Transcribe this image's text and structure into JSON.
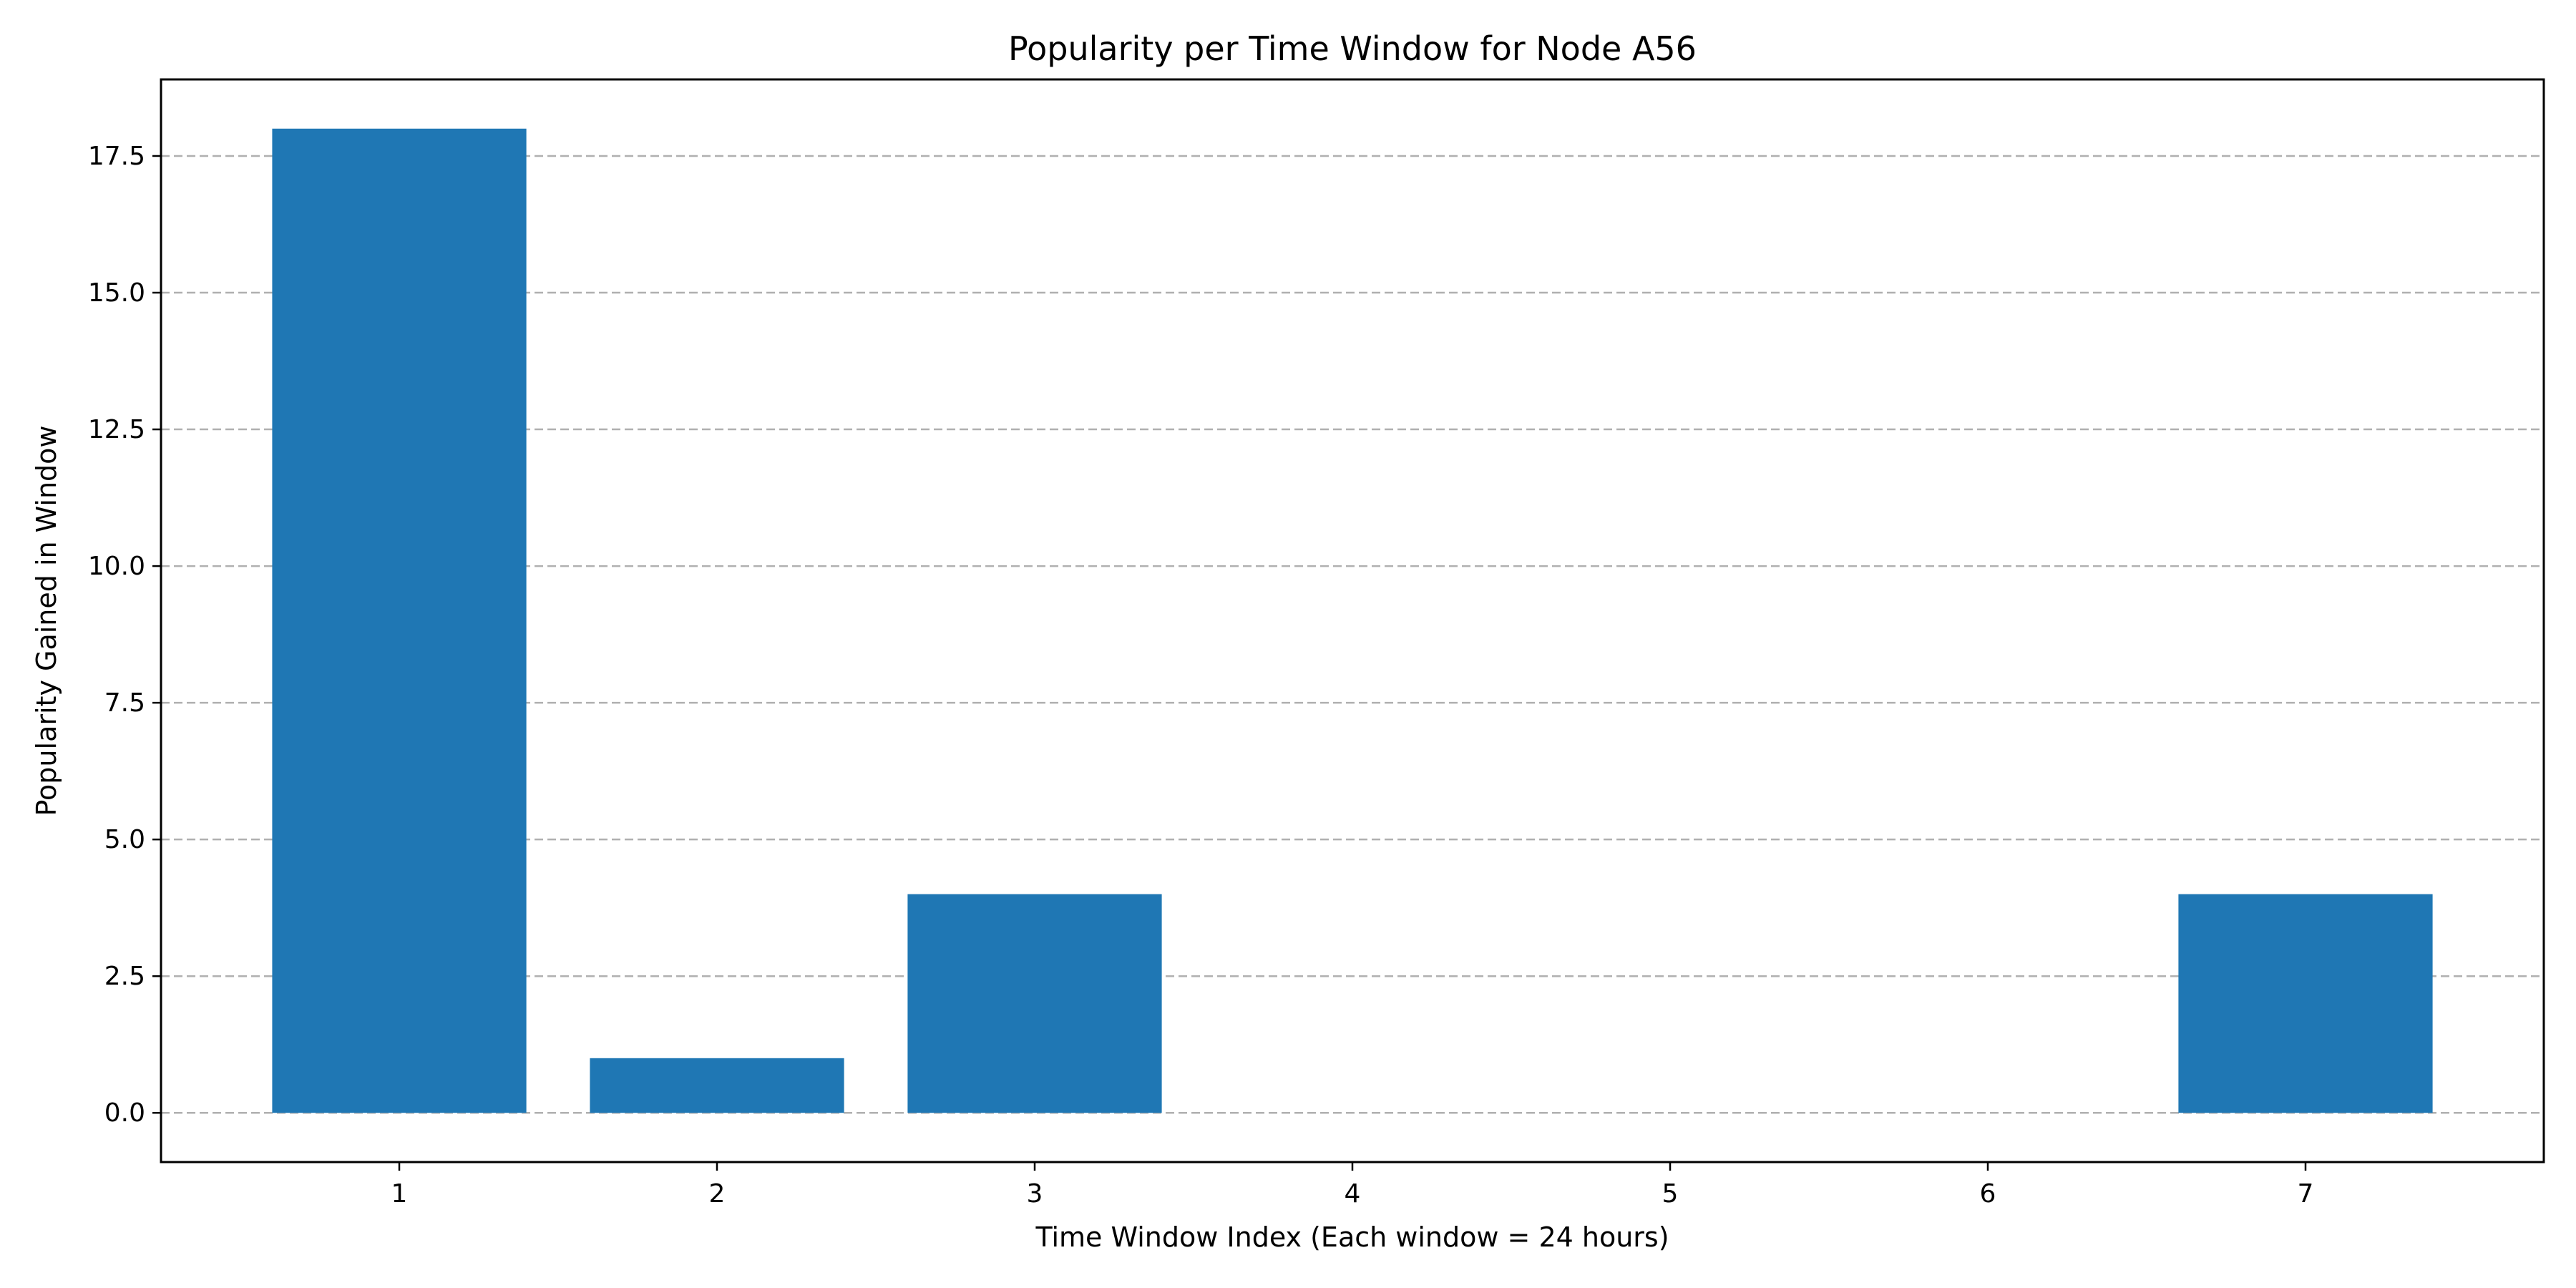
{
  "chart_data": {
    "type": "bar",
    "title": "Popularity per Time Window for Node A56",
    "xlabel": "Time Window Index (Each window = 24 hours)",
    "ylabel": "Popularity Gained in Window",
    "categories": [
      "1",
      "2",
      "3",
      "4",
      "5",
      "6",
      "7"
    ],
    "x": [
      1,
      2,
      3,
      4,
      5,
      6,
      7
    ],
    "values": [
      18,
      1,
      4,
      0,
      0,
      0,
      4
    ],
    "xlim": [
      0.25,
      7.75
    ],
    "ylim": [
      -0.9,
      18.9
    ],
    "yticks": [
      0.0,
      2.5,
      5.0,
      7.5,
      10.0,
      12.5,
      15.0,
      17.5
    ],
    "ytick_labels": [
      "0.0",
      "2.5",
      "5.0",
      "7.5",
      "10.0",
      "12.5",
      "15.0",
      "17.5"
    ],
    "grid": {
      "y": true,
      "x": false,
      "style": "dashed"
    },
    "bar_width": 0.8,
    "colors": {
      "bar": "#1f77b4",
      "grid": "#b0b0b0"
    }
  }
}
